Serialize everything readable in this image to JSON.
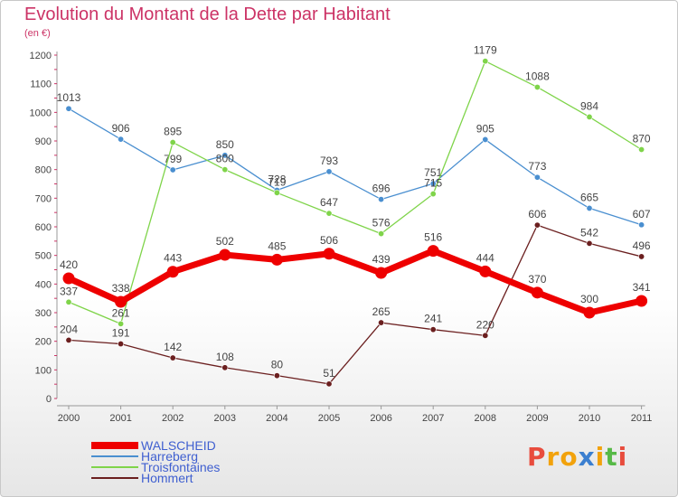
{
  "title": "Evolution du Montant de la Dette par Habitant",
  "unit": "(en €)",
  "logo": {
    "letters": [
      "P",
      "r",
      "o",
      "x",
      "i",
      "t",
      "i"
    ],
    "colors": [
      "#e84c3d",
      "#f2a20c",
      "#f2a20c",
      "#3b7fd0",
      "#f2a20c",
      "#57b947",
      "#e84c3d"
    ]
  },
  "chart_data": {
    "type": "line",
    "title": "Evolution du Montant de la Dette par Habitant",
    "ylabel": "(en €)",
    "x": [
      "2000",
      "2001",
      "2002",
      "2003",
      "2004",
      "2005",
      "2006",
      "2007",
      "2008",
      "2009",
      "2010",
      "2011"
    ],
    "ylim": [
      0,
      1200
    ],
    "yticks": [
      0,
      100,
      200,
      300,
      400,
      500,
      600,
      700,
      800,
      900,
      1000,
      1100,
      1200
    ],
    "grid": false,
    "legend_position": "bottom-left",
    "series": [
      {
        "name": "WALSCHEID",
        "color": "#ee0000",
        "bold": true,
        "values": [
          420,
          338,
          443,
          502,
          485,
          506,
          439,
          516,
          444,
          370,
          300,
          341
        ]
      },
      {
        "name": "Harreberg",
        "color": "#4a8fd0",
        "bold": false,
        "values": [
          1013,
          906,
          799,
          850,
          728,
          793,
          696,
          751,
          905,
          773,
          665,
          607
        ]
      },
      {
        "name": "Troisfontaines",
        "color": "#7fd44a",
        "bold": false,
        "values": [
          337,
          261,
          895,
          800,
          719,
          647,
          576,
          715,
          1179,
          1088,
          984,
          870
        ]
      },
      {
        "name": "Hommert",
        "color": "#6b1f1f",
        "bold": false,
        "values": [
          204,
          191,
          142,
          108,
          80,
          51,
          265,
          241,
          220,
          606,
          542,
          496
        ]
      }
    ]
  }
}
